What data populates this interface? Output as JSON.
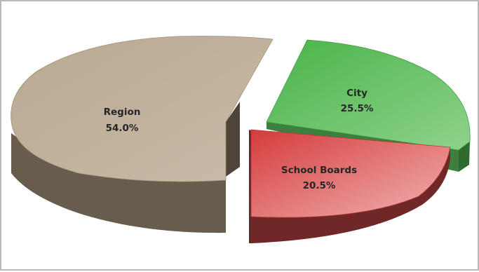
{
  "chart_data": {
    "type": "pie",
    "style": "3d-exploded",
    "title": "",
    "slices": [
      {
        "label": "Region",
        "value": 54.0,
        "percent_label": "54.0%",
        "color": "#bba991"
      },
      {
        "label": "City",
        "value": 25.5,
        "percent_label": "25.5%",
        "color": "#73c36f"
      },
      {
        "label": "School Boards",
        "value": 20.5,
        "percent_label": "20.5%",
        "color": "#df6b6b"
      }
    ],
    "legend": "none"
  }
}
